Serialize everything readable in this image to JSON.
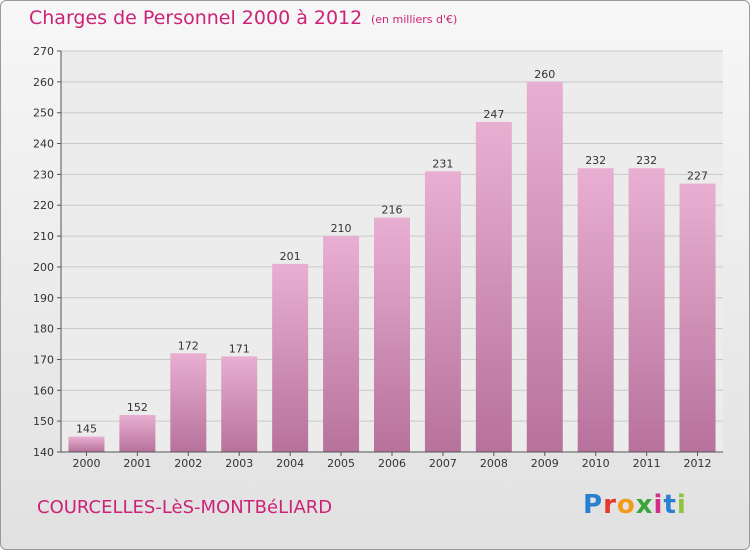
{
  "header": {
    "title": "Charges de Personnel 2000 à 2012",
    "subtitle": "(en milliers d'€)"
  },
  "footer": {
    "commune": "COURCELLES-LèS-MONTBéLIARD",
    "logo": [
      "P",
      "r",
      "o",
      "x",
      "i",
      "t",
      "i"
    ]
  },
  "colors": {
    "bar_top": "#e9afd2",
    "bar_bottom": "#b7729b",
    "title": "#cc2277"
  },
  "chart_data": {
    "type": "bar",
    "title": "Charges de Personnel 2000 à 2012",
    "subtitle": "(en milliers d'€)",
    "categories": [
      "2000",
      "2001",
      "2002",
      "2003",
      "2004",
      "2005",
      "2006",
      "2007",
      "2008",
      "2009",
      "2010",
      "2011",
      "2012"
    ],
    "values": [
      145,
      152,
      172,
      171,
      201,
      210,
      216,
      231,
      247,
      260,
      232,
      232,
      227
    ],
    "ylim": [
      140,
      270
    ],
    "yticks": [
      140,
      150,
      160,
      170,
      180,
      190,
      200,
      210,
      220,
      230,
      240,
      250,
      260,
      270
    ],
    "grid": true,
    "data_labels": true
  }
}
